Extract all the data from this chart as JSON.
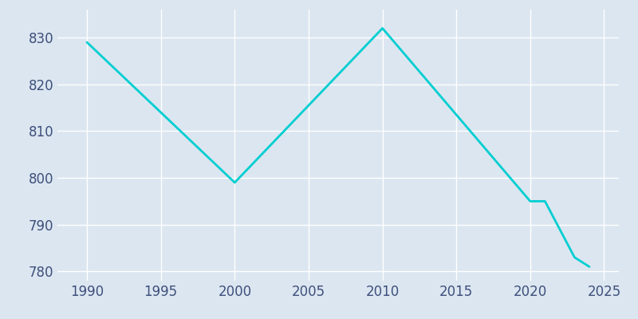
{
  "years": [
    1990,
    2000,
    2010,
    2020,
    2021,
    2023,
    2024
  ],
  "population": [
    829,
    799,
    832,
    795,
    795,
    783,
    781
  ],
  "line_color": "#00CED1",
  "line_width": 2.0,
  "background_color": "#dce6f0",
  "plot_bg_color": "#dce6f0",
  "grid_color": "#ffffff",
  "xlabel": "",
  "ylabel": "",
  "xlim": [
    1988,
    2026
  ],
  "ylim": [
    778,
    836
  ],
  "xticks": [
    1990,
    1995,
    2000,
    2005,
    2010,
    2015,
    2020,
    2025
  ],
  "yticks": [
    780,
    790,
    800,
    810,
    820,
    830
  ],
  "tick_color": "#3d4f7c",
  "tick_fontsize": 12
}
